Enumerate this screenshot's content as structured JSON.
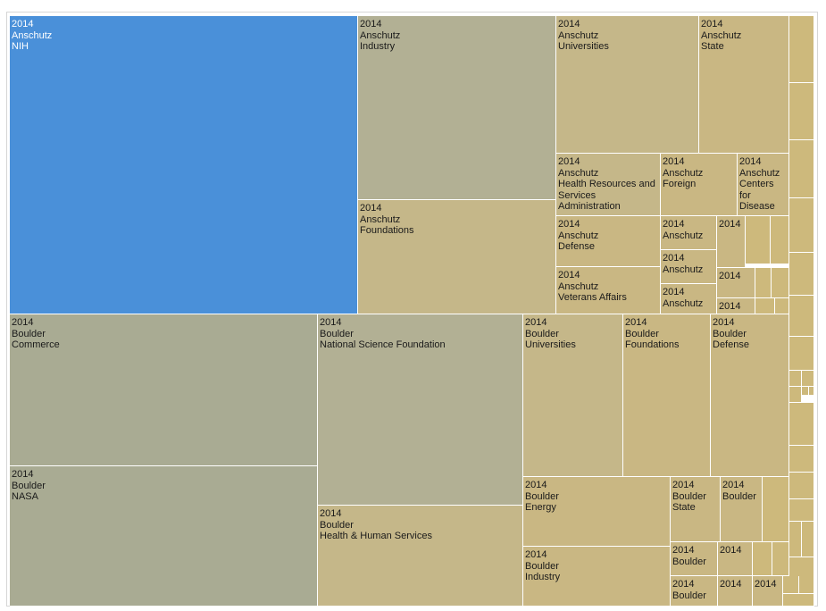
{
  "chart_data": {
    "type": "treemap",
    "title": "",
    "colors": {
      "highlight": "#4a90d9",
      "grey_green": "#a9ab93",
      "khaki": "#b2b094",
      "tan": "#c5b789",
      "tan_light": "#c9b783",
      "gold": "#cdb97c"
    },
    "cells": [
      {
        "id": "anschutz-nih",
        "lines": [
          "2014",
          "Anschutz",
          "NIH"
        ],
        "color": "highlight"
      },
      {
        "id": "anschutz-industry",
        "lines": [
          "2014",
          "Anschutz",
          "Industry"
        ],
        "color": "khaki"
      },
      {
        "id": "anschutz-foundations",
        "lines": [
          "2014",
          "Anschutz",
          "Foundations"
        ],
        "color": "tan"
      },
      {
        "id": "anschutz-universities",
        "lines": [
          "2014",
          "Anschutz",
          "Universities"
        ],
        "color": "tan"
      },
      {
        "id": "anschutz-state",
        "lines": [
          "2014",
          "Anschutz",
          "State"
        ],
        "color": "tan_light"
      },
      {
        "id": "anschutz-hrsa",
        "lines": [
          "2014",
          "Anschutz",
          "Health Resources and",
          "Services",
          "Administration"
        ],
        "color": "tan"
      },
      {
        "id": "anschutz-foreign",
        "lines": [
          "2014",
          "Anschutz",
          "Foreign"
        ],
        "color": "tan_light"
      },
      {
        "id": "anschutz-cdc",
        "lines": [
          "2014",
          "Anschutz",
          "Centers",
          "for",
          "Disease"
        ],
        "color": "tan_light"
      },
      {
        "id": "anschutz-defense",
        "lines": [
          "2014",
          "Anschutz",
          "Defense"
        ],
        "color": "tan_light"
      },
      {
        "id": "anschutz-small-1",
        "lines": [
          "2014",
          "Anschutz"
        ],
        "color": "tan_light"
      },
      {
        "id": "anschutz-small-2",
        "lines": [
          "2014",
          "Anschutz"
        ],
        "color": "tan_light"
      },
      {
        "id": "anschutz-veterans",
        "lines": [
          "2014",
          "Anschutz",
          "Veterans Affairs"
        ],
        "color": "tan_light"
      },
      {
        "id": "anschutz-small-3",
        "lines": [
          "2014",
          "Anschutz"
        ],
        "color": "tan_light"
      },
      {
        "id": "small-a",
        "lines": [
          "2014"
        ],
        "color": "tan_light"
      },
      {
        "id": "small-b",
        "lines": [
          "2014"
        ],
        "color": "tan_light"
      },
      {
        "id": "small-c",
        "lines": [
          "2014"
        ],
        "color": "tan_light"
      },
      {
        "id": "boulder-commerce",
        "lines": [
          "2014",
          "Boulder",
          "Commerce"
        ],
        "color": "grey_green"
      },
      {
        "id": "boulder-nasa",
        "lines": [
          "2014",
          "Boulder",
          "NASA"
        ],
        "color": "grey_green"
      },
      {
        "id": "boulder-nsf",
        "lines": [
          "2014",
          "Boulder",
          "National Science Foundation"
        ],
        "color": "khaki"
      },
      {
        "id": "boulder-hhs",
        "lines": [
          "2014",
          "Boulder",
          "Health & Human Services"
        ],
        "color": "tan"
      },
      {
        "id": "boulder-universities",
        "lines": [
          "2014",
          "Boulder",
          "Universities"
        ],
        "color": "tan"
      },
      {
        "id": "boulder-foundations",
        "lines": [
          "2014",
          "Boulder",
          "Foundations"
        ],
        "color": "tan_light"
      },
      {
        "id": "boulder-defense",
        "lines": [
          "2014",
          "Boulder",
          "Defense"
        ],
        "color": "tan_light"
      },
      {
        "id": "boulder-energy",
        "lines": [
          "2014",
          "Boulder",
          "Energy"
        ],
        "color": "tan_light"
      },
      {
        "id": "boulder-industry",
        "lines": [
          "2014",
          "Boulder",
          "Industry"
        ],
        "color": "tan_light"
      },
      {
        "id": "boulder-state",
        "lines": [
          "2014",
          "Boulder",
          "State"
        ],
        "color": "tan_light"
      },
      {
        "id": "boulder-small-1",
        "lines": [
          "2014",
          "Boulder"
        ],
        "color": "tan_light"
      },
      {
        "id": "boulder-small-2",
        "lines": [
          "2014",
          "Boulder"
        ],
        "color": "tan_light"
      },
      {
        "id": "boulder-small-3",
        "lines": [
          "2014",
          "Boulder"
        ],
        "color": "tan_light"
      },
      {
        "id": "small-d",
        "lines": [
          "2014"
        ],
        "color": "tan_light"
      },
      {
        "id": "small-e",
        "lines": [
          "2014"
        ],
        "color": "tan_light"
      },
      {
        "id": "small-f",
        "lines": [
          "2014"
        ],
        "color": "tan_light"
      }
    ]
  }
}
